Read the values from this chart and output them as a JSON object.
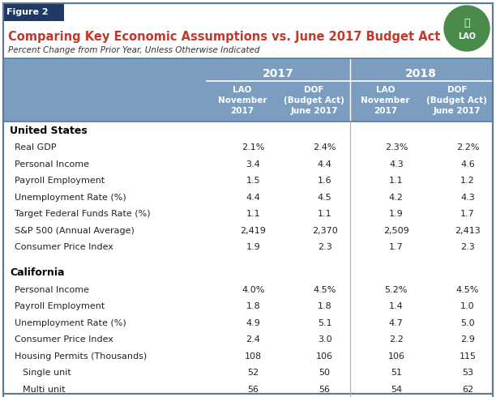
{
  "figure_label": "Figure 2",
  "title": "Comparing Key Economic Assumptions vs. June 2017 Budget Act",
  "subtitle": "Percent Change from Prior Year, Unless Otherwise Indicated",
  "header_bg": "#7b9dbf",
  "header_year_2017": "2017",
  "header_year_2018": "2018",
  "col_headers": [
    "LAO\nNovember\n2017",
    "DOF\n(Budget Act)\nJune 2017",
    "LAO\nNovember\n2017",
    "DOF\n(Budget Act)\nJune 2017"
  ],
  "section_us": "United States",
  "section_ca": "California",
  "rows": [
    {
      "label": "Real GDP",
      "indent": 1,
      "vals": [
        "2.1%",
        "2.4%",
        "2.3%",
        "2.2%"
      ],
      "section": "US"
    },
    {
      "label": "Personal Income",
      "indent": 1,
      "vals": [
        "3.4",
        "4.4",
        "4.3",
        "4.6"
      ],
      "section": "US"
    },
    {
      "label": "Payroll Employment",
      "indent": 1,
      "vals": [
        "1.5",
        "1.6",
        "1.1",
        "1.2"
      ],
      "section": "US"
    },
    {
      "label": "Unemployment Rate (%)",
      "indent": 1,
      "vals": [
        "4.4",
        "4.5",
        "4.2",
        "4.3"
      ],
      "section": "US"
    },
    {
      "label": "Target Federal Funds Rate (%)",
      "indent": 1,
      "vals": [
        "1.1",
        "1.1",
        "1.9",
        "1.7"
      ],
      "section": "US"
    },
    {
      "label": "S&P 500 (Annual Average)",
      "indent": 1,
      "vals": [
        "2,419",
        "2,370",
        "2,509",
        "2,413"
      ],
      "section": "US"
    },
    {
      "label": "Consumer Price Index",
      "indent": 1,
      "vals": [
        "1.9",
        "2.3",
        "1.7",
        "2.3"
      ],
      "section": "US"
    },
    {
      "label": "Personal Income",
      "indent": 1,
      "vals": [
        "4.0%",
        "4.5%",
        "5.2%",
        "4.5%"
      ],
      "section": "CA"
    },
    {
      "label": "Payroll Employment",
      "indent": 1,
      "vals": [
        "1.8",
        "1.8",
        "1.4",
        "1.0"
      ],
      "section": "CA"
    },
    {
      "label": "Unemployment Rate (%)",
      "indent": 1,
      "vals": [
        "4.9",
        "5.1",
        "4.7",
        "5.0"
      ],
      "section": "CA"
    },
    {
      "label": "Consumer Price Index",
      "indent": 1,
      "vals": [
        "2.4",
        "3.0",
        "2.2",
        "2.9"
      ],
      "section": "CA"
    },
    {
      "label": "Housing Permits (Thousands)",
      "indent": 1,
      "vals": [
        "108",
        "106",
        "106",
        "115"
      ],
      "section": "CA"
    },
    {
      "label": "Single unit",
      "indent": 2,
      "vals": [
        "52",
        "50",
        "51",
        "53"
      ],
      "section": "CA"
    },
    {
      "label": "Multi unit",
      "indent": 2,
      "vals": [
        "56",
        "56",
        "54",
        "62"
      ],
      "section": "CA"
    }
  ],
  "title_color": "#c0392b",
  "border_color": "#5a7a9a",
  "fig_label_bg": "#1f3864",
  "fig_label_color": "#ffffff",
  "lao_circle_color": "#4a8a4a",
  "white": "#ffffff",
  "black": "#000000",
  "row_text_color": "#222222"
}
